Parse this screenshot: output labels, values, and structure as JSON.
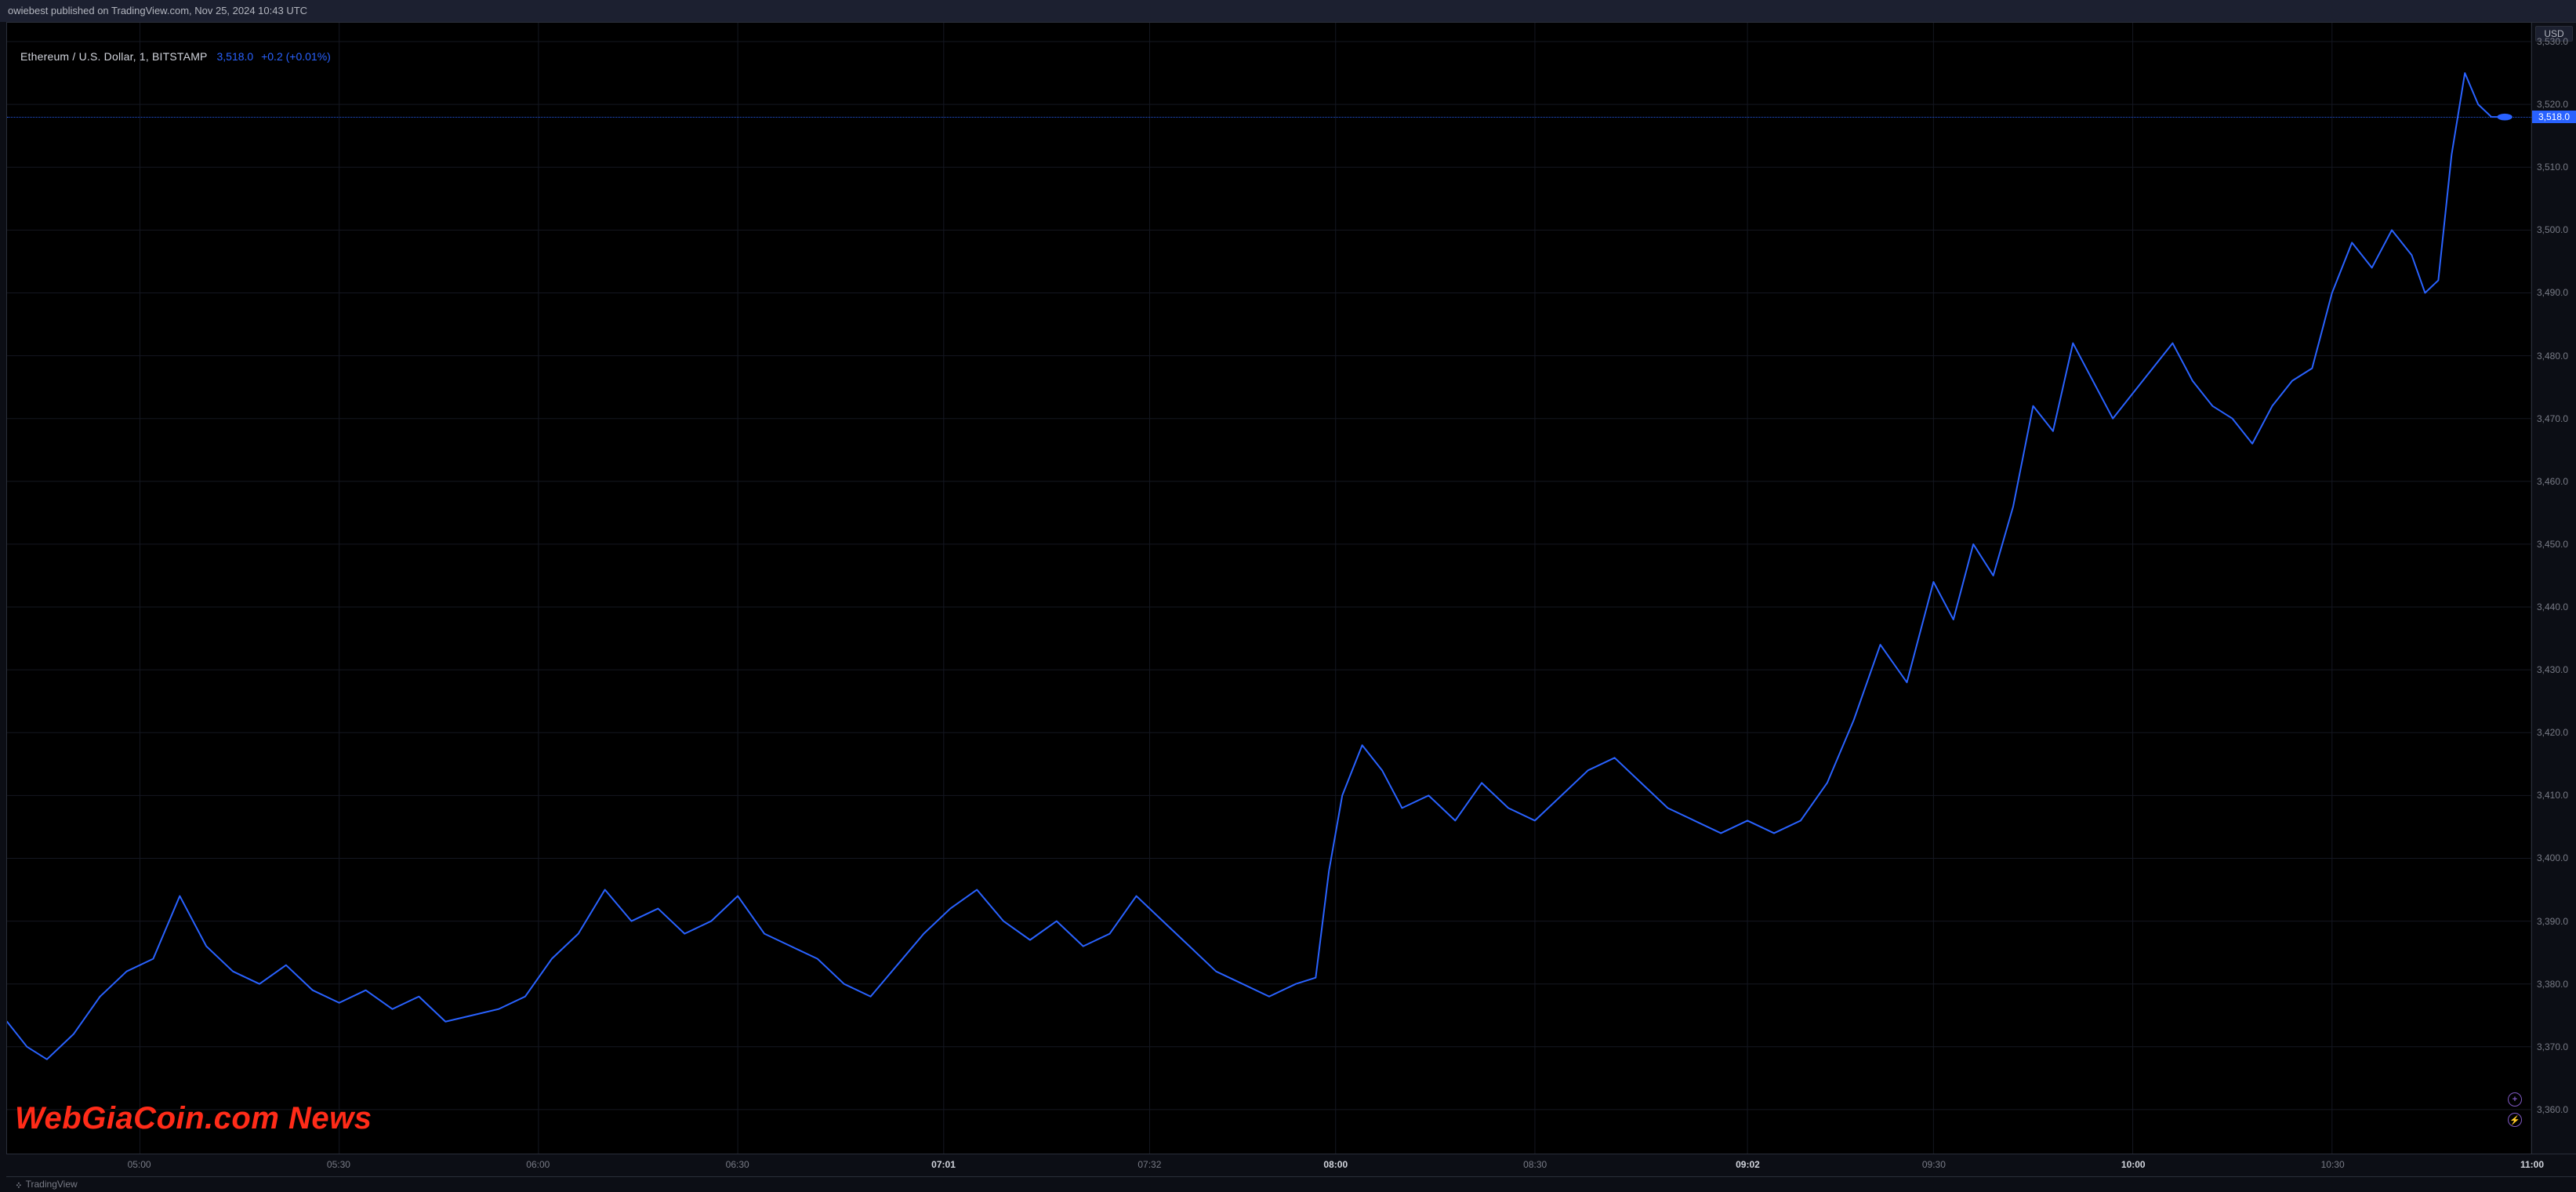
{
  "header": {
    "publish_info": "owiebest published on TradingView.com, Nov 25, 2024 10:43 UTC"
  },
  "legend": {
    "symbol": "Ethereum / U.S. Dollar, 1, BITSTAMP",
    "price": "3,518.0",
    "change": "+0.2 (+0.01%)"
  },
  "footer": {
    "logo_text": "TradingView"
  },
  "watermark": {
    "text": "WebGiaCoin.com News"
  },
  "yaxis_button": {
    "label": "USD"
  },
  "indicators": {
    "plus": "+",
    "bolt": "⚡"
  },
  "chart": {
    "type": "line",
    "background_color": "#000000",
    "grid_color": "#141721",
    "line_color": "#2962ff",
    "line_width": 2,
    "price_line_color": "#2962ff",
    "font_family": "-apple-system, Trebuchet MS, Arial, sans-serif",
    "tick_label_fontsize": 12,
    "ylim": [
      3353,
      3533
    ],
    "ytick_step": 10,
    "yticks": [
      3360,
      3370,
      3380,
      3390,
      3400,
      3410,
      3420,
      3430,
      3440,
      3450,
      3460,
      3470,
      3480,
      3490,
      3500,
      3510,
      3520,
      3530
    ],
    "ytick_format": ",.1f",
    "current_price": 3518.0,
    "current_price_label": "3,518.0",
    "xticks": [
      {
        "label": "05:00",
        "minute": 300,
        "bold": false
      },
      {
        "label": "05:30",
        "minute": 330,
        "bold": false
      },
      {
        "label": "06:00",
        "minute": 360,
        "bold": false
      },
      {
        "label": "06:30",
        "minute": 390,
        "bold": false
      },
      {
        "label": "07:01",
        "minute": 421,
        "bold": true
      },
      {
        "label": "07:32",
        "minute": 452,
        "bold": false
      },
      {
        "label": "08:00",
        "minute": 480,
        "bold": true
      },
      {
        "label": "08:30",
        "minute": 510,
        "bold": false
      },
      {
        "label": "09:02",
        "minute": 542,
        "bold": true
      },
      {
        "label": "09:30",
        "minute": 570,
        "bold": false
      },
      {
        "label": "10:00",
        "minute": 600,
        "bold": true
      },
      {
        "label": "10:30",
        "minute": 630,
        "bold": false
      },
      {
        "label": "11:00",
        "minute": 660,
        "bold": true
      }
    ],
    "x_range_minutes": [
      280,
      660
    ],
    "series": [
      [
        280,
        3374
      ],
      [
        283,
        3370
      ],
      [
        286,
        3368
      ],
      [
        290,
        3372
      ],
      [
        294,
        3378
      ],
      [
        298,
        3382
      ],
      [
        302,
        3384
      ],
      [
        306,
        3394
      ],
      [
        310,
        3386
      ],
      [
        314,
        3382
      ],
      [
        318,
        3380
      ],
      [
        322,
        3383
      ],
      [
        326,
        3379
      ],
      [
        330,
        3377
      ],
      [
        334,
        3379
      ],
      [
        338,
        3376
      ],
      [
        342,
        3378
      ],
      [
        346,
        3374
      ],
      [
        350,
        3375
      ],
      [
        354,
        3376
      ],
      [
        358,
        3378
      ],
      [
        362,
        3384
      ],
      [
        366,
        3388
      ],
      [
        370,
        3395
      ],
      [
        374,
        3390
      ],
      [
        378,
        3392
      ],
      [
        382,
        3388
      ],
      [
        386,
        3390
      ],
      [
        390,
        3394
      ],
      [
        394,
        3388
      ],
      [
        398,
        3386
      ],
      [
        402,
        3384
      ],
      [
        406,
        3380
      ],
      [
        410,
        3378
      ],
      [
        414,
        3383
      ],
      [
        418,
        3388
      ],
      [
        422,
        3392
      ],
      [
        426,
        3395
      ],
      [
        430,
        3390
      ],
      [
        434,
        3387
      ],
      [
        438,
        3390
      ],
      [
        442,
        3386
      ],
      [
        446,
        3388
      ],
      [
        450,
        3394
      ],
      [
        454,
        3390
      ],
      [
        458,
        3386
      ],
      [
        462,
        3382
      ],
      [
        466,
        3380
      ],
      [
        470,
        3378
      ],
      [
        474,
        3380
      ],
      [
        477,
        3381
      ],
      [
        479,
        3398
      ],
      [
        481,
        3410
      ],
      [
        484,
        3418
      ],
      [
        487,
        3414
      ],
      [
        490,
        3408
      ],
      [
        494,
        3410
      ],
      [
        498,
        3406
      ],
      [
        502,
        3412
      ],
      [
        506,
        3408
      ],
      [
        510,
        3406
      ],
      [
        514,
        3410
      ],
      [
        518,
        3414
      ],
      [
        522,
        3416
      ],
      [
        526,
        3412
      ],
      [
        530,
        3408
      ],
      [
        534,
        3406
      ],
      [
        538,
        3404
      ],
      [
        542,
        3406
      ],
      [
        546,
        3404
      ],
      [
        550,
        3406
      ],
      [
        554,
        3412
      ],
      [
        558,
        3422
      ],
      [
        562,
        3434
      ],
      [
        566,
        3428
      ],
      [
        570,
        3444
      ],
      [
        573,
        3438
      ],
      [
        576,
        3450
      ],
      [
        579,
        3445
      ],
      [
        582,
        3456
      ],
      [
        585,
        3472
      ],
      [
        588,
        3468
      ],
      [
        591,
        3482
      ],
      [
        594,
        3476
      ],
      [
        597,
        3470
      ],
      [
        600,
        3474
      ],
      [
        603,
        3478
      ],
      [
        606,
        3482
      ],
      [
        609,
        3476
      ],
      [
        612,
        3472
      ],
      [
        615,
        3470
      ],
      [
        618,
        3466
      ],
      [
        621,
        3472
      ],
      [
        624,
        3476
      ],
      [
        627,
        3478
      ],
      [
        630,
        3490
      ],
      [
        633,
        3498
      ],
      [
        636,
        3494
      ],
      [
        639,
        3500
      ],
      [
        642,
        3496
      ],
      [
        644,
        3490
      ],
      [
        646,
        3492
      ],
      [
        648,
        3512
      ],
      [
        650,
        3525
      ],
      [
        652,
        3520
      ],
      [
        654,
        3518
      ],
      [
        656,
        3518
      ]
    ]
  }
}
